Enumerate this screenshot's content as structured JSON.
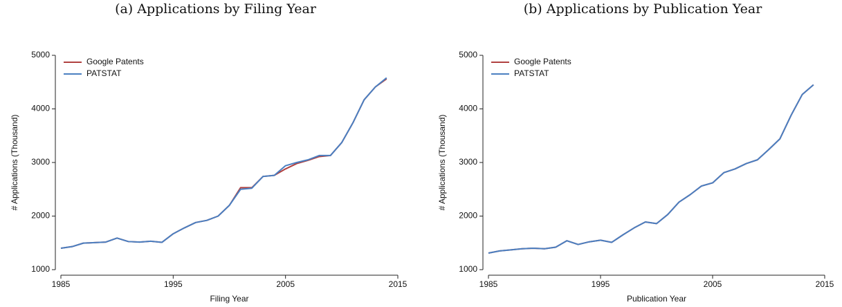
{
  "chart_data": [
    {
      "type": "line",
      "title": "(a) Applications by Filing Year",
      "xlabel": "Filing Year",
      "ylabel": "# Applications (Thousand)",
      "x": [
        1985,
        1986,
        1987,
        1988,
        1989,
        1990,
        1991,
        1992,
        1993,
        1994,
        1995,
        1996,
        1997,
        1998,
        1999,
        2000,
        2001,
        2002,
        2003,
        2004,
        2005,
        2006,
        2007,
        2008,
        2009,
        2010,
        2011,
        2012,
        2013,
        2014
      ],
      "series": [
        {
          "name": "Google Patents",
          "color": "#b0403f",
          "values": [
            1400,
            1430,
            1495,
            1505,
            1515,
            1590,
            1525,
            1515,
            1530,
            1510,
            1670,
            1780,
            1880,
            1920,
            2000,
            2200,
            2530,
            2530,
            2740,
            2760,
            2880,
            2980,
            3040,
            3110,
            3130,
            3370,
            3740,
            4170,
            4410,
            4560
          ]
        },
        {
          "name": "PATSTAT",
          "color": "#4a7fc1",
          "values": [
            1400,
            1430,
            1495,
            1505,
            1515,
            1590,
            1525,
            1515,
            1530,
            1510,
            1670,
            1780,
            1880,
            1920,
            2000,
            2200,
            2500,
            2520,
            2740,
            2760,
            2940,
            3000,
            3050,
            3130,
            3130,
            3370,
            3740,
            4170,
            4410,
            4580
          ]
        }
      ],
      "xlim": [
        1985,
        2015
      ],
      "xticks": [
        1985,
        1995,
        2005,
        2015
      ],
      "ylim": [
        1000,
        5000
      ],
      "yticks": [
        1000,
        2000,
        3000,
        4000,
        5000
      ],
      "legend": "upper left"
    },
    {
      "type": "line",
      "title": "(b) Applications by Publication Year",
      "xlabel": "Publication Year",
      "ylabel": "# Applications (Thousand)",
      "x": [
        1985,
        1986,
        1987,
        1988,
        1989,
        1990,
        1991,
        1992,
        1993,
        1994,
        1995,
        1996,
        1997,
        1998,
        1999,
        2000,
        2001,
        2002,
        2003,
        2004,
        2005,
        2006,
        2007,
        2008,
        2009,
        2010,
        2011,
        2012,
        2013,
        2014
      ],
      "series": [
        {
          "name": "Google Patents",
          "color": "#b0403f",
          "values": [
            1310,
            1350,
            1370,
            1390,
            1400,
            1390,
            1420,
            1540,
            1470,
            1520,
            1550,
            1510,
            1650,
            1780,
            1890,
            1860,
            2030,
            2260,
            2400,
            2560,
            2620,
            2810,
            2880,
            2980,
            3050,
            3240,
            3440,
            3880,
            4270,
            4450
          ]
        },
        {
          "name": "PATSTAT",
          "color": "#4a7fc1",
          "values": [
            1310,
            1350,
            1370,
            1390,
            1400,
            1390,
            1420,
            1540,
            1470,
            1520,
            1550,
            1510,
            1650,
            1780,
            1890,
            1860,
            2030,
            2260,
            2400,
            2560,
            2620,
            2810,
            2880,
            2980,
            3050,
            3240,
            3440,
            3880,
            4270,
            4450
          ]
        }
      ],
      "xlim": [
        1985,
        2015
      ],
      "xticks": [
        1985,
        1995,
        2005,
        2015
      ],
      "ylim": [
        1000,
        5000
      ],
      "yticks": [
        1000,
        2000,
        3000,
        4000,
        5000
      ],
      "legend": "upper left"
    }
  ]
}
